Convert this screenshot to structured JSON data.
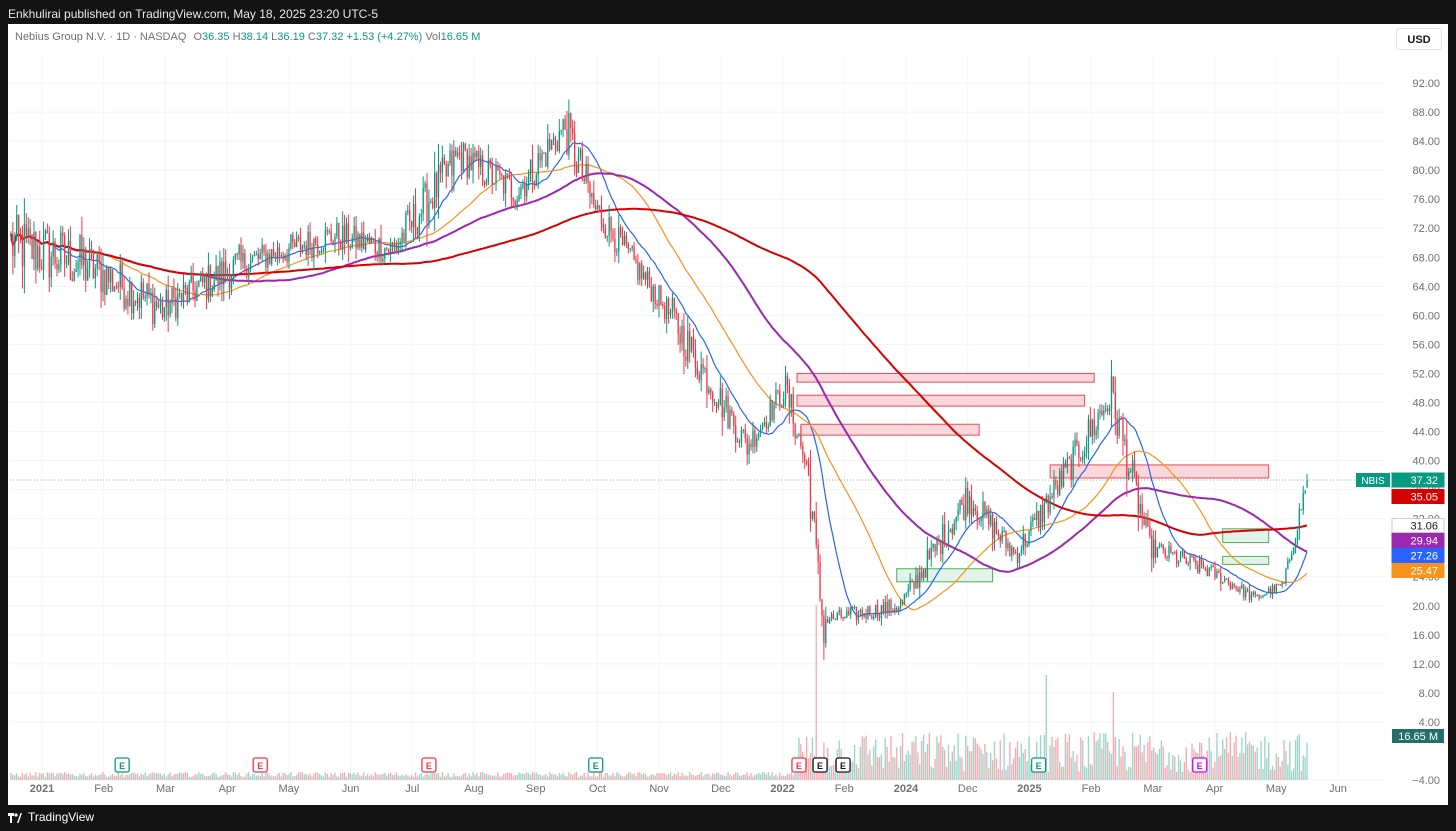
{
  "header": {
    "attribution": "Enkhulirai published on TradingView.com, May 18, 2025 23:20 UTC-5"
  },
  "legend": {
    "symbol": "Nebius Group N.V. · 1D · NASDAQ",
    "open_label": "O",
    "open": "36.35",
    "high_label": "H",
    "high": "38.14",
    "low_label": "L",
    "low": "36.19",
    "close_label": "C",
    "close": "37.32",
    "change": "+1.53 (+4.27%)",
    "volume_label": "Vol",
    "volume": "16.65 M"
  },
  "currency_button": "USD",
  "footer": {
    "brand": "TradingView"
  },
  "colors": {
    "up": "#089981",
    "down": "#f23645",
    "up_light": "#9ad5c8",
    "down_light": "#f7a9b0",
    "ma20": "#2962ff",
    "ma50": "#f7931a",
    "ma100": "#9c27b0",
    "ma200": "#d50000",
    "supply_fill": "#f8d3d6",
    "supply_stroke": "#e84a57",
    "demand_fill": "#dff2ea",
    "demand_stroke": "#4caf50"
  },
  "chart_data": {
    "type": "candlestick",
    "symbol": "NBIS",
    "interval": "1D",
    "exchange": "NASDAQ",
    "ylim": [
      -4,
      96
    ],
    "y_ticks": [
      "92.00",
      "88.00",
      "84.00",
      "80.00",
      "76.00",
      "72.00",
      "68.00",
      "64.00",
      "60.00",
      "56.00",
      "52.00",
      "48.00",
      "44.00",
      "40.00",
      "36.00",
      "32.00",
      "28.00",
      "24.00",
      "20.00",
      "16.00",
      "12.00",
      "8.00",
      "4.00",
      "−4.00"
    ],
    "x_ticks": [
      "2021",
      "Feb",
      "Mar",
      "Apr",
      "May",
      "Jun",
      "Jul",
      "Aug",
      "Sep",
      "Oct",
      "Nov",
      "Dec",
      "2022",
      "Feb",
      "2024",
      "Dec",
      "2025",
      "Feb",
      "Mar",
      "Apr",
      "May",
      "Jun"
    ],
    "last_price": 37.32,
    "price_labels": [
      {
        "label": "NBIS",
        "value": "37.32",
        "color": "#089981"
      },
      {
        "value": "35.05",
        "color": "#d50000"
      },
      {
        "value": "31.06",
        "color": "#ffffff"
      },
      {
        "value": "29.94",
        "color": "#9c27b0"
      },
      {
        "value": "27.26",
        "color": "#2962ff"
      },
      {
        "value": "25.47",
        "color": "#f7931a"
      }
    ],
    "volume_label": "16.65 M",
    "price_path_segments": [
      {
        "n": 40,
        "from": 70,
        "to": 67,
        "vol": 0.06
      },
      {
        "n": 40,
        "from": 67,
        "to": 61,
        "vol": 0.05
      },
      {
        "n": 40,
        "from": 61,
        "to": 67,
        "vol": 0.04
      },
      {
        "n": 50,
        "from": 67,
        "to": 71,
        "vol": 0.03
      },
      {
        "n": 30,
        "from": 71,
        "to": 69,
        "vol": 0.03
      },
      {
        "n": 35,
        "from": 69,
        "to": 82,
        "vol": 0.04
      },
      {
        "n": 30,
        "from": 82,
        "to": 77,
        "vol": 0.03
      },
      {
        "n": 25,
        "from": 77,
        "to": 86,
        "vol": 0.03
      },
      {
        "n": 15,
        "from": 86,
        "to": 75,
        "vol": 0.04
      },
      {
        "n": 40,
        "from": 75,
        "to": 60,
        "vol": 0.03
      },
      {
        "n": 40,
        "from": 60,
        "to": 42,
        "vol": 0.05
      },
      {
        "n": 20,
        "from": 42,
        "to": 50,
        "vol": 0.04
      },
      {
        "n": 12,
        "from": 50,
        "to": 38,
        "vol": 0.05
      },
      {
        "n": 8,
        "from": 38,
        "to": 16,
        "vol": 0.1
      },
      {
        "n": 40,
        "from": 18,
        "to": 20,
        "vol": 0.06
      },
      {
        "n": 35,
        "from": 20,
        "to": 35,
        "vol": 0.07
      },
      {
        "n": 25,
        "from": 35,
        "to": 27,
        "vol": 0.06
      },
      {
        "n": 30,
        "from": 27,
        "to": 40,
        "vol": 0.06
      },
      {
        "n": 20,
        "from": 40,
        "to": 49,
        "vol": 0.06
      },
      {
        "n": 20,
        "from": 49,
        "to": 28,
        "vol": 0.07
      },
      {
        "n": 30,
        "from": 28,
        "to": 25,
        "vol": 0.05
      },
      {
        "n": 25,
        "from": 25,
        "to": 21,
        "vol": 0.04
      },
      {
        "n": 15,
        "from": 21,
        "to": 23,
        "vol": 0.03
      },
      {
        "n": 12,
        "from": 23,
        "to": 37.3,
        "vol": 0.04
      }
    ],
    "moving_averages": [
      {
        "period": 20,
        "color": "#2962ff",
        "last": 27.26
      },
      {
        "period": 50,
        "color": "#f7931a",
        "last": 25.47
      },
      {
        "period": 100,
        "color": "#9c27b0",
        "last": 29.94
      },
      {
        "period": 200,
        "color": "#d50000",
        "last": 35.05
      }
    ],
    "supply_zones": [
      {
        "x_from_bar": 410,
        "x_to_bar": 565,
        "y_from": 50.8,
        "y_to": 52
      },
      {
        "x_from_bar": 410,
        "x_to_bar": 560,
        "y_from": 47.5,
        "y_to": 49
      },
      {
        "x_from_bar": 412,
        "x_to_bar": 505,
        "y_from": 43.5,
        "y_to": 45
      },
      {
        "x_from_bar": 542,
        "x_to_bar": 656,
        "y_from": 37.6,
        "y_to": 39.4
      }
    ],
    "demand_zones": [
      {
        "x_from_bar": 462,
        "x_to_bar": 512,
        "y_from": 23.3,
        "y_to": 25.1
      },
      {
        "x_from_bar": 632,
        "x_to_bar": 656,
        "y_from": 28.7,
        "y_to": 30.6
      },
      {
        "x_from_bar": 632,
        "x_to_bar": 656,
        "y_from": 25.7,
        "y_to": 26.8
      }
    ],
    "events": [
      {
        "bar": 58,
        "letter": "E",
        "kind": "up"
      },
      {
        "bar": 130,
        "letter": "E",
        "kind": "down"
      },
      {
        "bar": 218,
        "letter": "E",
        "kind": "down"
      },
      {
        "bar": 305,
        "letter": "E",
        "kind": "up"
      },
      {
        "bar": 411,
        "letter": "E",
        "kind": "down"
      },
      {
        "bar": 422,
        "letter": "E",
        "kind": "dark"
      },
      {
        "bar": 434,
        "letter": "E",
        "kind": "dark"
      },
      {
        "bar": 536,
        "letter": "E",
        "kind": "up"
      },
      {
        "bar": 620,
        "letter": "E",
        "kind": "future"
      }
    ]
  }
}
